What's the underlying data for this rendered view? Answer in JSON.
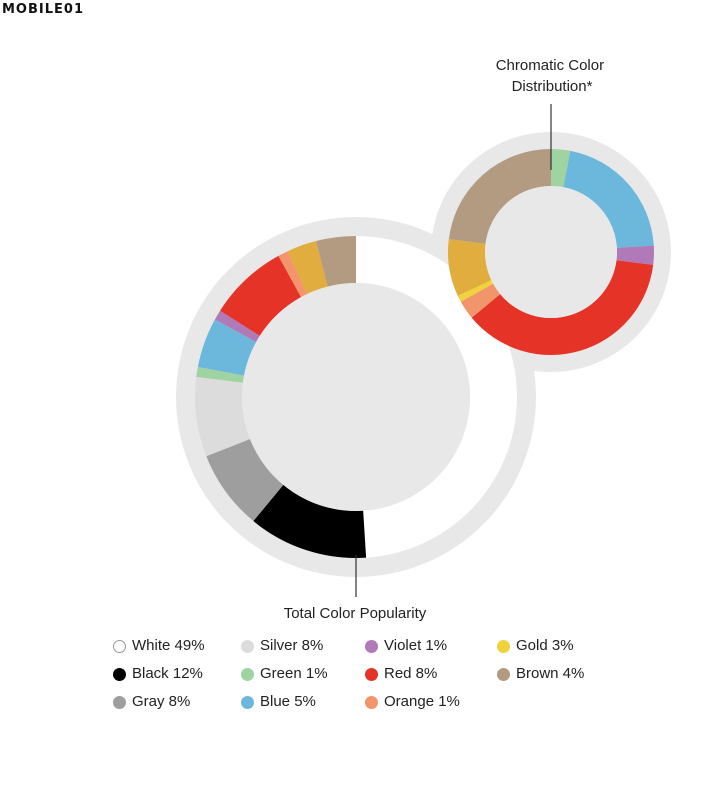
{
  "watermark": "MOBILE01",
  "chart_data": [
    {
      "type": "pie",
      "title": "Total Color Popularity",
      "legend_position": "bottom",
      "slices": [
        {
          "name": "White",
          "value": 49,
          "color": "#ffffff"
        },
        {
          "name": "Black",
          "value": 12,
          "color": "#000000"
        },
        {
          "name": "Gray",
          "value": 8,
          "color": "#9e9e9e"
        },
        {
          "name": "Silver",
          "value": 8,
          "color": "#dcdcdc"
        },
        {
          "name": "Green",
          "value": 1,
          "color": "#9fd3a2"
        },
        {
          "name": "Blue",
          "value": 5,
          "color": "#6cb8dd"
        },
        {
          "name": "Violet",
          "value": 1,
          "color": "#b07ab9"
        },
        {
          "name": "Red",
          "value": 8,
          "color": "#e53427"
        },
        {
          "name": "Orange",
          "value": 1,
          "color": "#f3956b"
        },
        {
          "name": "Gold",
          "value": 3,
          "color": "#e0ad3e"
        },
        {
          "name": "Brown",
          "value": 4,
          "color": "#b39b82"
        }
      ]
    },
    {
      "type": "pie",
      "title": "Chromatic Color Distribution*",
      "slices": [
        {
          "name": "Green",
          "value": 3,
          "color": "#9fd3a2"
        },
        {
          "name": "Blue",
          "value": 21,
          "color": "#6cb8dd"
        },
        {
          "name": "Violet",
          "value": 3,
          "color": "#b07ab9"
        },
        {
          "name": "Red",
          "value": 37,
          "color": "#e53427"
        },
        {
          "name": "Orange",
          "value": 3,
          "color": "#f3956b"
        },
        {
          "name": "Gold",
          "value": 1,
          "color": "#f0d23c"
        },
        {
          "name": "Gold",
          "value": 9,
          "color": "#e0ad3e"
        },
        {
          "name": "Brown",
          "value": 23,
          "color": "#b39b82"
        }
      ]
    }
  ],
  "legend": [
    {
      "label": "White 49%",
      "color": "#ffffff"
    },
    {
      "label": "Silver 8%",
      "color": "#dcdcdc"
    },
    {
      "label": "Violet 1%",
      "color": "#b07ab9"
    },
    {
      "label": "Gold 3%",
      "color": "#f0d23c"
    },
    {
      "label": "Black 12%",
      "color": "#000000"
    },
    {
      "label": "Green 1%",
      "color": "#9fd3a2"
    },
    {
      "label": "Red 8%",
      "color": "#e53427"
    },
    {
      "label": "Brown 4%",
      "color": "#b39b82"
    },
    {
      "label": "Gray 8%",
      "color": "#9e9e9e"
    },
    {
      "label": "Blue 5%",
      "color": "#6cb8dd"
    },
    {
      "label": "Orange 1%",
      "color": "#f3956b"
    }
  ]
}
